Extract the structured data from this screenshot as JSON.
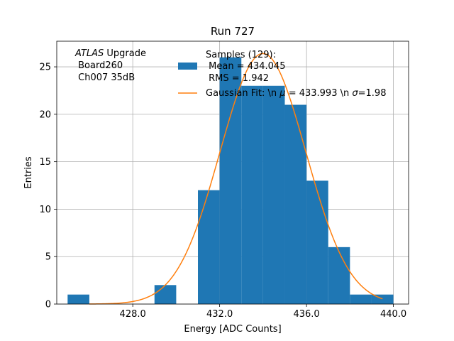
{
  "chart_data": {
    "type": "bar",
    "title": "Run 727",
    "xlabel": "Energy [ADC Counts]",
    "ylabel": "Entries",
    "xlim": [
      424.5,
      440.7
    ],
    "ylim": [
      0,
      27.7
    ],
    "xticks": [
      428.0,
      432.0,
      436.0,
      440.0
    ],
    "xtick_labels": [
      "428.0",
      "432.0",
      "436.0",
      "440.0"
    ],
    "yticks": [
      0,
      5,
      10,
      15,
      20,
      25
    ],
    "ytick_labels": [
      "0",
      "5",
      "10",
      "15",
      "20",
      "25"
    ],
    "grid": true,
    "bin_edges": [
      425,
      426,
      427,
      428,
      429,
      430,
      431,
      432,
      433,
      434,
      435,
      436,
      437,
      438,
      439,
      440
    ],
    "counts": [
      1,
      0,
      0,
      0,
      2,
      0,
      12,
      26,
      23,
      23,
      21,
      13,
      6,
      1,
      1
    ],
    "bar_color": "#1f77b4",
    "fit_color": "#ff7f0e",
    "fit": {
      "type": "gaussian",
      "amplitude": 26.4,
      "mu": 433.993,
      "sigma": 1.98,
      "x_start": 426.0,
      "x_end": 439.5
    },
    "annotation": {
      "italic": "ATLAS",
      "rest": " Upgrade",
      "line2": " Board260",
      "line3": " Ch007 35dB"
    },
    "legend": {
      "location": "top-right",
      "hist_line1": "Samples (129):",
      "hist_line2": " Mean = 434.045",
      "hist_line3": " RMS = 1.942",
      "fit_prefix": "Gaussian Fit: \\n ",
      "fit_mu_symbol": "μ",
      "fit_middle": " = 433.993 \\n ",
      "fit_sigma_symbol": "σ",
      "fit_suffix": "=1.98"
    }
  }
}
